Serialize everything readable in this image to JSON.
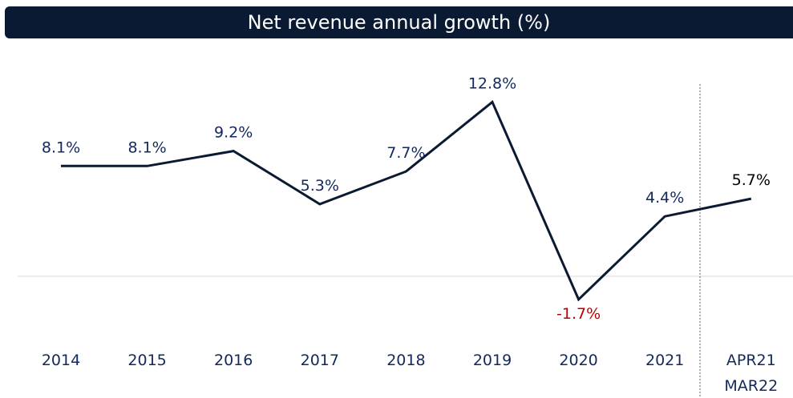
{
  "chart_data": {
    "type": "line",
    "title": "Net revenue annual growth (%)",
    "categories": [
      "2014",
      "2015",
      "2016",
      "2017",
      "2018",
      "2019",
      "2020",
      "2021",
      "APR21\nMAR22"
    ],
    "series": [
      {
        "color": "#0b1a33",
        "values": [
          8.1,
          8.1,
          9.2,
          5.3,
          7.7,
          12.8,
          -1.7,
          4.4,
          5.7
        ],
        "value_labels": [
          "8.1%",
          "8.1%",
          "9.2%",
          "5.3%",
          "7.7%",
          "12.8%",
          "-1.7%",
          "4.4%",
          "5.7%"
        ],
        "value_label_colors": [
          "#13285e",
          "#13285e",
          "#13285e",
          "#13285e",
          "#13285e",
          "#13285e",
          "#c00000",
          "#13285e",
          "#000000"
        ]
      }
    ],
    "ylim": [
      -4,
      16
    ]
  }
}
